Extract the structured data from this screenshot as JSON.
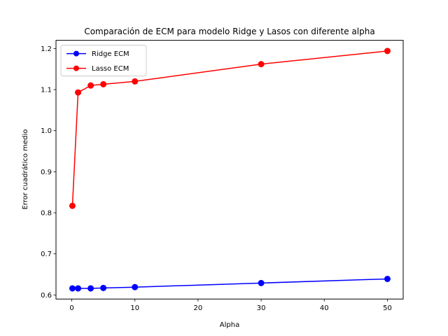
{
  "chart_data": {
    "type": "line",
    "title": "Comparación de ECM para modelo Ridge y Lasos con diferente alpha",
    "xlabel": "Alpha",
    "ylabel": "Error cuadrático medio",
    "xlim": [
      -2.5,
      52.5
    ],
    "ylim": [
      0.59,
      1.22
    ],
    "x_ticks": [
      0,
      10,
      20,
      30,
      40,
      50
    ],
    "x_tick_labels": [
      "0",
      "10",
      "20",
      "30",
      "40",
      "50"
    ],
    "y_ticks": [
      0.6,
      0.7,
      0.8,
      0.9,
      1.0,
      1.1,
      1.2
    ],
    "y_tick_labels": [
      "0.6",
      "0.7",
      "0.8",
      "0.9",
      "1.0",
      "1.1",
      "1.2"
    ],
    "grid": false,
    "legend_position": "top-left",
    "series": [
      {
        "name": "Ridge ECM",
        "color": "#0000ff",
        "marker": "circle",
        "x": [
          0.1,
          1,
          3,
          5,
          10,
          30,
          50
        ],
        "y": [
          0.616,
          0.616,
          0.616,
          0.617,
          0.619,
          0.629,
          0.639
        ]
      },
      {
        "name": "Lasso ECM",
        "color": "#ff0000",
        "marker": "circle",
        "x": [
          0.1,
          1,
          3,
          5,
          10,
          30,
          50
        ],
        "y": [
          0.817,
          1.093,
          1.11,
          1.113,
          1.12,
          1.162,
          1.194
        ]
      }
    ]
  }
}
